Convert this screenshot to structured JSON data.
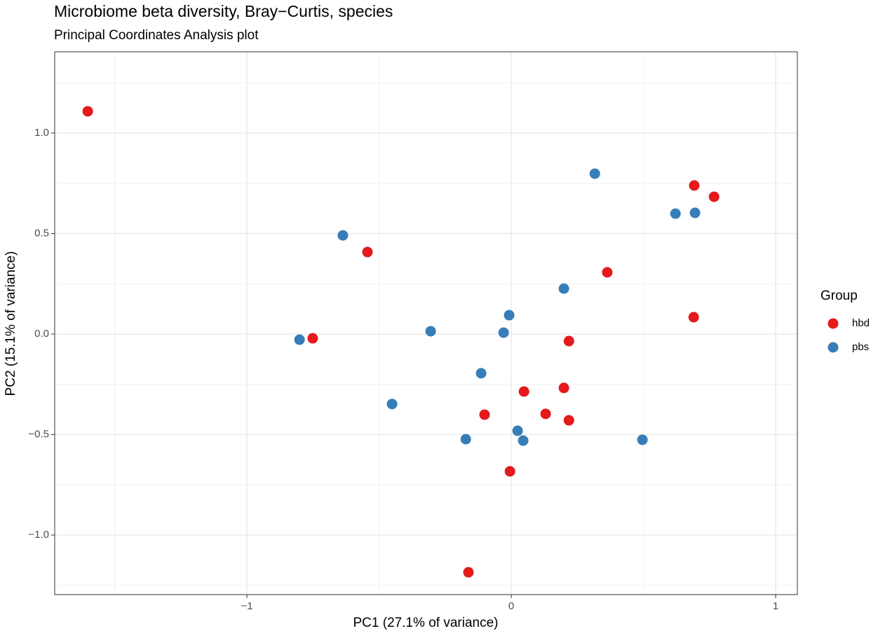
{
  "chart_data": {
    "type": "scatter",
    "title": "Microbiome beta diversity, Bray−Curtis, species",
    "subtitle": "Principal Coordinates Analysis plot",
    "x_label": "PC1 (27.1% of variance)",
    "y_label": "PC2 (15.1% of variance)",
    "legend_title": "Group",
    "legend_position": "right",
    "grid": true,
    "xlim": [
      -1.727,
      1.082
    ],
    "ylim": [
      -1.296,
      1.404
    ],
    "xticks": [
      {
        "value": -1,
        "label": "−1"
      },
      0,
      1
    ],
    "yticks": [
      {
        "value": -1,
        "label": "−1.0"
      },
      {
        "value": -0.5,
        "label": "−0.5"
      },
      {
        "value": 0,
        "label": "0.0"
      },
      0.5,
      {
        "value": 1,
        "label": "1.0"
      }
    ],
    "series": [
      {
        "name": "hbd",
        "color": "#E41A1C",
        "x": [
          -1.602,
          -0.544,
          -0.751,
          0.692,
          0.767,
          0.363,
          0.69,
          0.218,
          0.048,
          0.199,
          -0.101,
          0.13,
          0.218,
          -0.005,
          -0.162
        ],
        "y": [
          1.108,
          0.408,
          -0.021,
          0.739,
          0.683,
          0.307,
          0.084,
          -0.035,
          -0.286,
          -0.268,
          -0.401,
          -0.397,
          -0.429,
          -0.683,
          -1.185
        ]
      },
      {
        "name": "pbs",
        "color": "#377EB8",
        "x": [
          -0.637,
          -0.801,
          -0.305,
          -0.451,
          -0.114,
          -0.008,
          -0.029,
          0.199,
          0.316,
          0.621,
          0.695,
          -0.172,
          0.024,
          0.045,
          0.496
        ],
        "y": [
          0.491,
          -0.028,
          0.014,
          -0.348,
          -0.195,
          0.094,
          0.007,
          0.226,
          0.798,
          0.599,
          0.603,
          -0.523,
          -0.481,
          -0.53,
          -0.526
        ]
      }
    ]
  }
}
